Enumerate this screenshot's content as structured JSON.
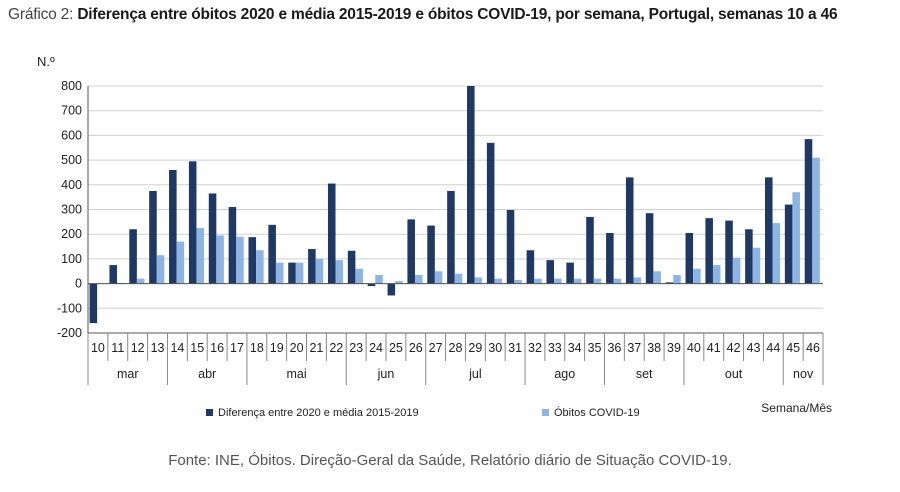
{
  "title_prefix": "Gráfico 2:",
  "title_text": "Diferença entre óbitos 2020 e média 2015-2019 e óbitos COVID-19, por semana, Portugal, semanas 10 a 46",
  "source_label": "Fonte:",
  "source_text": "INE, Óbitos. Direção-Geral da Saúde, Relatório diário de Situação COVID-19.",
  "colors": {
    "series1": "#1f3864",
    "series2": "#8db4e2"
  },
  "chart_data": {
    "type": "bar",
    "title": "Diferença entre óbitos 2020 e média 2015-2019 e óbitos COVID-19, por semana, Portugal, semanas 10 a 46",
    "ylabel": "N.º",
    "xlabel": "Semana/Mês",
    "ylim": [
      -200,
      800
    ],
    "yticks": [
      -200,
      -100,
      0,
      100,
      200,
      300,
      400,
      500,
      600,
      700,
      800
    ],
    "grid": true,
    "legend_position": "bottom",
    "categories": [
      "10",
      "11",
      "12",
      "13",
      "14",
      "15",
      "16",
      "17",
      "18",
      "19",
      "20",
      "21",
      "22",
      "23",
      "24",
      "25",
      "26",
      "27",
      "28",
      "29",
      "30",
      "31",
      "32",
      "33",
      "34",
      "35",
      "36",
      "37",
      "38",
      "39",
      "40",
      "41",
      "42",
      "43",
      "44",
      "45",
      "46"
    ],
    "months": [
      {
        "label": "mar",
        "start": 0,
        "end": 3
      },
      {
        "label": "abr",
        "start": 4,
        "end": 7
      },
      {
        "label": "mai",
        "start": 8,
        "end": 12
      },
      {
        "label": "jun",
        "start": 13,
        "end": 16
      },
      {
        "label": "jul",
        "start": 17,
        "end": 21
      },
      {
        "label": "ago",
        "start": 22,
        "end": 25
      },
      {
        "label": "set",
        "start": 26,
        "end": 29
      },
      {
        "label": "out",
        "start": 30,
        "end": 34
      },
      {
        "label": "nov",
        "start": 35,
        "end": 36
      }
    ],
    "series": [
      {
        "name": "Diferença entre 2020 e média 2015-2019",
        "values": [
          -160,
          75,
          220,
          375,
          460,
          495,
          365,
          310,
          188,
          238,
          85,
          140,
          405,
          133,
          -10,
          -48,
          260,
          235,
          375,
          800,
          570,
          298,
          135,
          95,
          85,
          270,
          205,
          430,
          285,
          5,
          205,
          265,
          255,
          220,
          430,
          320,
          585
        ]
      },
      {
        "name": "Óbitos COVID-19",
        "values": [
          0,
          3,
          20,
          115,
          170,
          225,
          195,
          190,
          135,
          85,
          85,
          100,
          95,
          60,
          35,
          10,
          35,
          50,
          40,
          25,
          20,
          15,
          20,
          20,
          20,
          20,
          20,
          25,
          50,
          35,
          60,
          75,
          105,
          145,
          245,
          370,
          510
        ]
      }
    ]
  }
}
